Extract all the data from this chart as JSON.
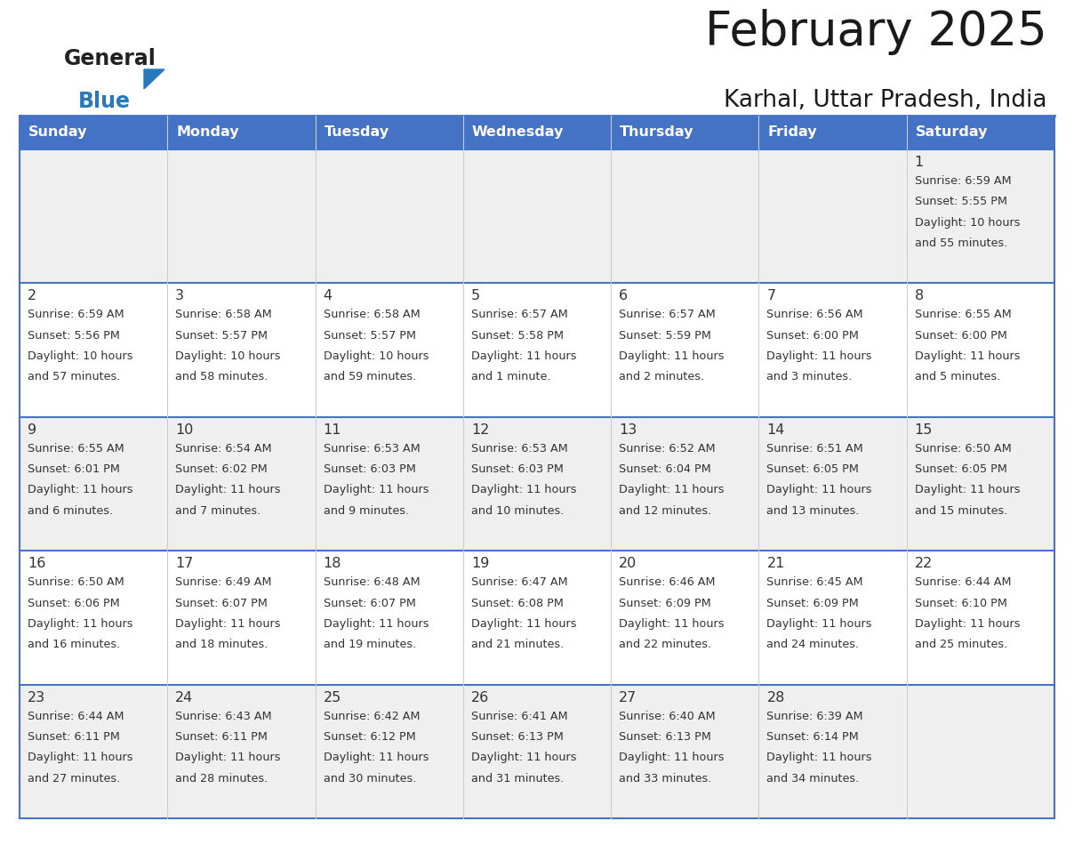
{
  "title": "February 2025",
  "subtitle": "Karhal, Uttar Pradesh, India",
  "header_bg": "#4472C4",
  "header_text_color": "#FFFFFF",
  "header_days": [
    "Sunday",
    "Monday",
    "Tuesday",
    "Wednesday",
    "Thursday",
    "Friday",
    "Saturday"
  ],
  "row_bg_odd": "#EFEFEF",
  "row_bg_even": "#FFFFFF",
  "cell_border_color": "#4472C4",
  "text_color": "#333333",
  "title_color": "#1a1a1a",
  "logo_general_color": "#222222",
  "logo_blue_color": "#2878BE",
  "days": [
    {
      "day": 1,
      "col": 6,
      "row": 0,
      "sunrise": "6:59 AM",
      "sunset": "5:55 PM",
      "daylight": "10 hours and 55 minutes."
    },
    {
      "day": 2,
      "col": 0,
      "row": 1,
      "sunrise": "6:59 AM",
      "sunset": "5:56 PM",
      "daylight": "10 hours and 57 minutes."
    },
    {
      "day": 3,
      "col": 1,
      "row": 1,
      "sunrise": "6:58 AM",
      "sunset": "5:57 PM",
      "daylight": "10 hours and 58 minutes."
    },
    {
      "day": 4,
      "col": 2,
      "row": 1,
      "sunrise": "6:58 AM",
      "sunset": "5:57 PM",
      "daylight": "10 hours and 59 minutes."
    },
    {
      "day": 5,
      "col": 3,
      "row": 1,
      "sunrise": "6:57 AM",
      "sunset": "5:58 PM",
      "daylight": "11 hours and 1 minute."
    },
    {
      "day": 6,
      "col": 4,
      "row": 1,
      "sunrise": "6:57 AM",
      "sunset": "5:59 PM",
      "daylight": "11 hours and 2 minutes."
    },
    {
      "day": 7,
      "col": 5,
      "row": 1,
      "sunrise": "6:56 AM",
      "sunset": "6:00 PM",
      "daylight": "11 hours and 3 minutes."
    },
    {
      "day": 8,
      "col": 6,
      "row": 1,
      "sunrise": "6:55 AM",
      "sunset": "6:00 PM",
      "daylight": "11 hours and 5 minutes."
    },
    {
      "day": 9,
      "col": 0,
      "row": 2,
      "sunrise": "6:55 AM",
      "sunset": "6:01 PM",
      "daylight": "11 hours and 6 minutes."
    },
    {
      "day": 10,
      "col": 1,
      "row": 2,
      "sunrise": "6:54 AM",
      "sunset": "6:02 PM",
      "daylight": "11 hours and 7 minutes."
    },
    {
      "day": 11,
      "col": 2,
      "row": 2,
      "sunrise": "6:53 AM",
      "sunset": "6:03 PM",
      "daylight": "11 hours and 9 minutes."
    },
    {
      "day": 12,
      "col": 3,
      "row": 2,
      "sunrise": "6:53 AM",
      "sunset": "6:03 PM",
      "daylight": "11 hours and 10 minutes."
    },
    {
      "day": 13,
      "col": 4,
      "row": 2,
      "sunrise": "6:52 AM",
      "sunset": "6:04 PM",
      "daylight": "11 hours and 12 minutes."
    },
    {
      "day": 14,
      "col": 5,
      "row": 2,
      "sunrise": "6:51 AM",
      "sunset": "6:05 PM",
      "daylight": "11 hours and 13 minutes."
    },
    {
      "day": 15,
      "col": 6,
      "row": 2,
      "sunrise": "6:50 AM",
      "sunset": "6:05 PM",
      "daylight": "11 hours and 15 minutes."
    },
    {
      "day": 16,
      "col": 0,
      "row": 3,
      "sunrise": "6:50 AM",
      "sunset": "6:06 PM",
      "daylight": "11 hours and 16 minutes."
    },
    {
      "day": 17,
      "col": 1,
      "row": 3,
      "sunrise": "6:49 AM",
      "sunset": "6:07 PM",
      "daylight": "11 hours and 18 minutes."
    },
    {
      "day": 18,
      "col": 2,
      "row": 3,
      "sunrise": "6:48 AM",
      "sunset": "6:07 PM",
      "daylight": "11 hours and 19 minutes."
    },
    {
      "day": 19,
      "col": 3,
      "row": 3,
      "sunrise": "6:47 AM",
      "sunset": "6:08 PM",
      "daylight": "11 hours and 21 minutes."
    },
    {
      "day": 20,
      "col": 4,
      "row": 3,
      "sunrise": "6:46 AM",
      "sunset": "6:09 PM",
      "daylight": "11 hours and 22 minutes."
    },
    {
      "day": 21,
      "col": 5,
      "row": 3,
      "sunrise": "6:45 AM",
      "sunset": "6:09 PM",
      "daylight": "11 hours and 24 minutes."
    },
    {
      "day": 22,
      "col": 6,
      "row": 3,
      "sunrise": "6:44 AM",
      "sunset": "6:10 PM",
      "daylight": "11 hours and 25 minutes."
    },
    {
      "day": 23,
      "col": 0,
      "row": 4,
      "sunrise": "6:44 AM",
      "sunset": "6:11 PM",
      "daylight": "11 hours and 27 minutes."
    },
    {
      "day": 24,
      "col": 1,
      "row": 4,
      "sunrise": "6:43 AM",
      "sunset": "6:11 PM",
      "daylight": "11 hours and 28 minutes."
    },
    {
      "day": 25,
      "col": 2,
      "row": 4,
      "sunrise": "6:42 AM",
      "sunset": "6:12 PM",
      "daylight": "11 hours and 30 minutes."
    },
    {
      "day": 26,
      "col": 3,
      "row": 4,
      "sunrise": "6:41 AM",
      "sunset": "6:13 PM",
      "daylight": "11 hours and 31 minutes."
    },
    {
      "day": 27,
      "col": 4,
      "row": 4,
      "sunrise": "6:40 AM",
      "sunset": "6:13 PM",
      "daylight": "11 hours and 33 minutes."
    },
    {
      "day": 28,
      "col": 5,
      "row": 4,
      "sunrise": "6:39 AM",
      "sunset": "6:14 PM",
      "daylight": "11 hours and 34 minutes."
    }
  ]
}
